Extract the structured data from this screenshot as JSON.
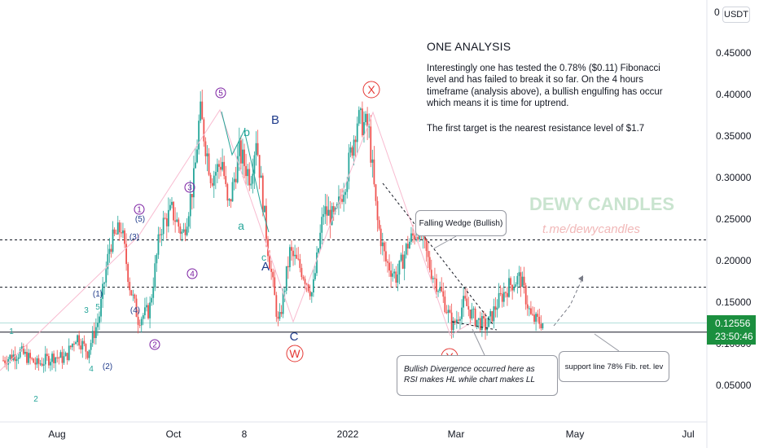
{
  "title": "ONE ANALYSIS",
  "analysis_paragraphs": [
    "Interestingly one has tested the 0.78% ($0.11) Fibonacci level and has failed to break it so far. On the 4 hours timeframe (analysis above), a bullish engulfing has occur which means it is time for uptrend.",
    "The first target is the nearest resistance level of $1.7"
  ],
  "callouts": {
    "wedge": "Falling Wedge (Bullish)",
    "divergence": "Bullish Divergence occurred here as RSI makes HL while chart makes LL",
    "support": "support line 78% Fib. ret. lev"
  },
  "watermark": {
    "brand": "DEWY CANDLES",
    "url": "t.me/dewycandles"
  },
  "price_scale": {
    "currency": "USDT",
    "top_label": "0",
    "last_price": "0.12556",
    "countdown": "23:50:46"
  },
  "colors": {
    "up": "#26a69a",
    "down": "#ef5350",
    "price_tag": "#1b8f3f",
    "wave_purple": "#7b1fa2",
    "wave_blue": "#1e3a8a",
    "wave_teal": "#26a69a",
    "wave_red": "#e53935"
  },
  "wave_labels": {
    "purple": [
      "1",
      "3",
      "4",
      "5",
      "2"
    ],
    "navy": [
      "(5)",
      "(3)",
      "(1)",
      "(4)",
      "(2)",
      "B",
      "A",
      "C"
    ],
    "teal": [
      "1",
      "2",
      "3",
      "4",
      "5",
      "a",
      "b",
      "c"
    ],
    "red": [
      "X",
      "W",
      "Y"
    ]
  },
  "chart_data": {
    "type": "candlestick",
    "title": "",
    "xlabel": "",
    "ylabel": "",
    "x_ticks": [
      "Aug",
      "Oct",
      "8",
      "2022",
      "Mar",
      "May",
      "Jul"
    ],
    "y_ticks": [
      0.05,
      0.1,
      0.15,
      0.2,
      0.25,
      0.3,
      0.35,
      0.4,
      0.45
    ],
    "y_tick_labels": [
      "0.05000",
      "0.10000",
      "0.15000",
      "0.20000",
      "0.25000",
      "0.30000",
      "0.35000",
      "0.40000",
      "0.45000"
    ],
    "ylim": [
      0.0,
      0.5
    ],
    "last_price": 0.12556,
    "horizontal_levels": [
      {
        "value": 0.225,
        "style": "dashed"
      },
      {
        "value": 0.168,
        "style": "dashed"
      },
      {
        "value": 0.114,
        "style": "solid"
      },
      {
        "value": 0.125,
        "style": "thin"
      }
    ],
    "price_path": [
      [
        0,
        0.08
      ],
      [
        6,
        0.09
      ],
      [
        12,
        0.075
      ],
      [
        18,
        0.085
      ],
      [
        22,
        0.082
      ],
      [
        26,
        0.11
      ],
      [
        30,
        0.09
      ],
      [
        34,
        0.13
      ],
      [
        38,
        0.22
      ],
      [
        42,
        0.24
      ],
      [
        45,
        0.17
      ],
      [
        48,
        0.13
      ],
      [
        52,
        0.14
      ],
      [
        56,
        0.24
      ],
      [
        60,
        0.26
      ],
      [
        64,
        0.23
      ],
      [
        68,
        0.3
      ],
      [
        70,
        0.38
      ],
      [
        74,
        0.3
      ],
      [
        78,
        0.32
      ],
      [
        80,
        0.26
      ],
      [
        84,
        0.33
      ],
      [
        88,
        0.3
      ],
      [
        90,
        0.35
      ],
      [
        94,
        0.22
      ],
      [
        98,
        0.12
      ],
      [
        102,
        0.21
      ],
      [
        106,
        0.19
      ],
      [
        110,
        0.16
      ],
      [
        114,
        0.26
      ],
      [
        118,
        0.25
      ],
      [
        122,
        0.3
      ],
      [
        126,
        0.37
      ],
      [
        130,
        0.36
      ],
      [
        133,
        0.25
      ],
      [
        136,
        0.2
      ],
      [
        140,
        0.18
      ],
      [
        144,
        0.22
      ],
      [
        148,
        0.24
      ],
      [
        152,
        0.19
      ],
      [
        156,
        0.16
      ],
      [
        160,
        0.12
      ],
      [
        164,
        0.15
      ],
      [
        168,
        0.13
      ],
      [
        172,
        0.12
      ],
      [
        176,
        0.15
      ],
      [
        180,
        0.17
      ],
      [
        184,
        0.18
      ],
      [
        188,
        0.13
      ],
      [
        192,
        0.125
      ]
    ],
    "notes": "x in days since chart start (early Jul 2021); y in USDT"
  }
}
